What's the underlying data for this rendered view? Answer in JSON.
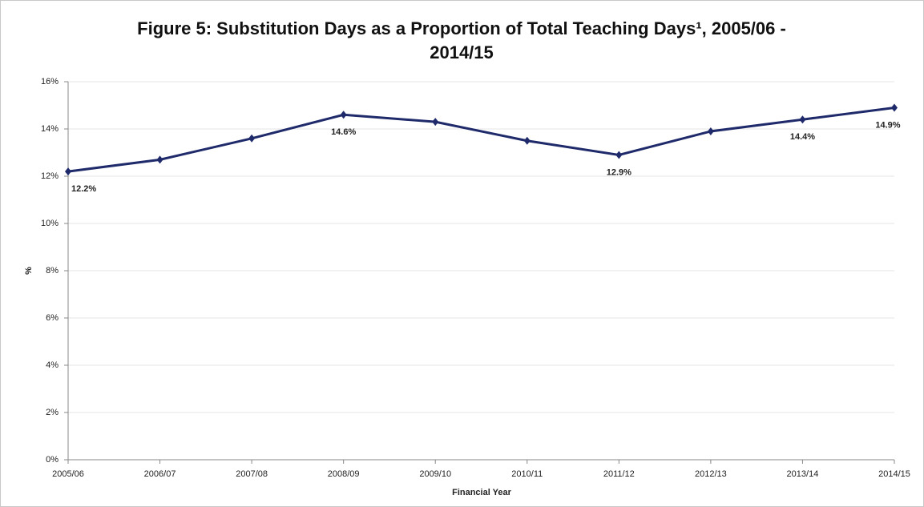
{
  "chart_data": {
    "type": "line",
    "title": "Figure 5: Substitution Days as a Proportion of Total Teaching Days¹, 2005/06 - 2014/15",
    "x_label": "Financial Year",
    "y_label": "%",
    "categories": [
      "2005/06",
      "2006/07",
      "2007/08",
      "2008/09",
      "2009/10",
      "2010/11",
      "2011/12",
      "2012/13",
      "2013/14",
      "2014/15"
    ],
    "series": [
      {
        "name": "Substitution Days",
        "color": "#1f2a6b",
        "values": [
          12.2,
          12.7,
          13.6,
          14.6,
          14.3,
          13.5,
          12.9,
          13.9,
          14.4,
          14.9
        ],
        "value_labels": [
          "12.2%",
          null,
          null,
          "14.6%",
          null,
          null,
          "12.9%",
          null,
          "14.4%",
          "14.9%"
        ]
      }
    ],
    "ylim": [
      0,
      16
    ],
    "yticks": [
      {
        "value": 0,
        "label": "0%"
      },
      {
        "value": 2,
        "label": "2%"
      },
      {
        "value": 4,
        "label": "4%"
      },
      {
        "value": 6,
        "label": "6%"
      },
      {
        "value": 8,
        "label": "8%"
      },
      {
        "value": 10,
        "label": "10%"
      },
      {
        "value": 12,
        "label": "12%"
      },
      {
        "value": 14,
        "label": "14%"
      },
      {
        "value": 16,
        "label": "16%"
      }
    ],
    "grid": true
  }
}
